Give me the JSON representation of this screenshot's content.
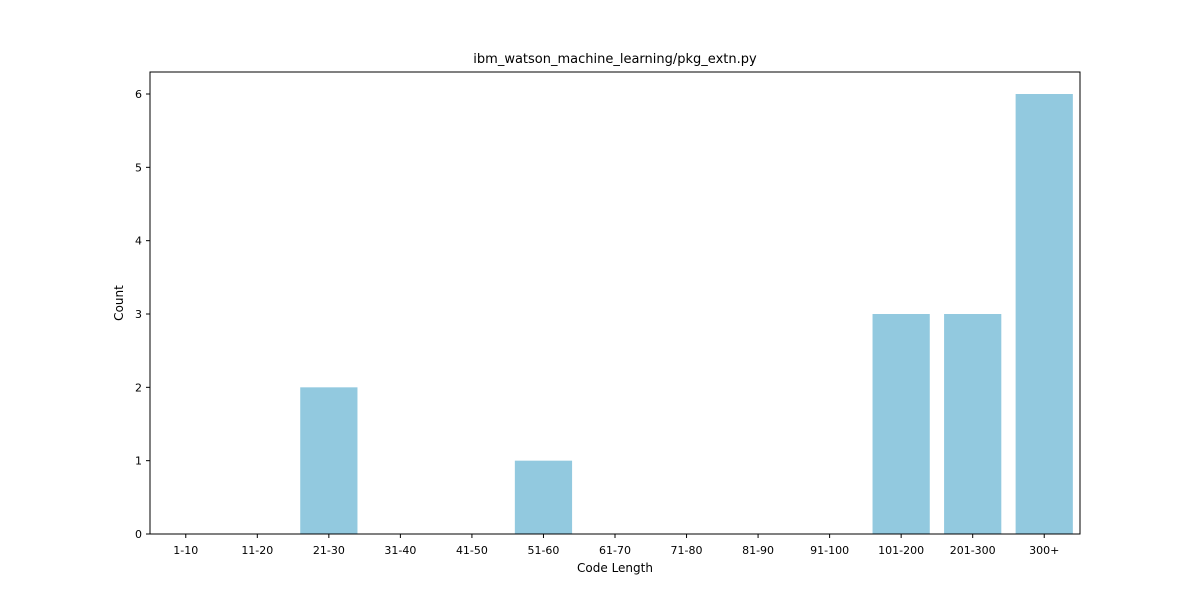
{
  "chart_data": {
    "type": "bar",
    "title": "ibm_watson_machine_learning/pkg_extn.py",
    "xlabel": "Code Length",
    "ylabel": "Count",
    "categories": [
      "1-10",
      "11-20",
      "21-30",
      "31-40",
      "41-50",
      "51-60",
      "61-70",
      "71-80",
      "81-90",
      "91-100",
      "101-200",
      "201-300",
      "300+"
    ],
    "values": [
      0,
      0,
      2,
      0,
      0,
      1,
      0,
      0,
      0,
      0,
      3,
      3,
      6
    ],
    "ylim": [
      0,
      6.3
    ],
    "yticks": [
      0,
      1,
      2,
      3,
      4,
      5,
      6
    ],
    "bar_color": "#92c9df",
    "grid": false,
    "legend": "none"
  }
}
